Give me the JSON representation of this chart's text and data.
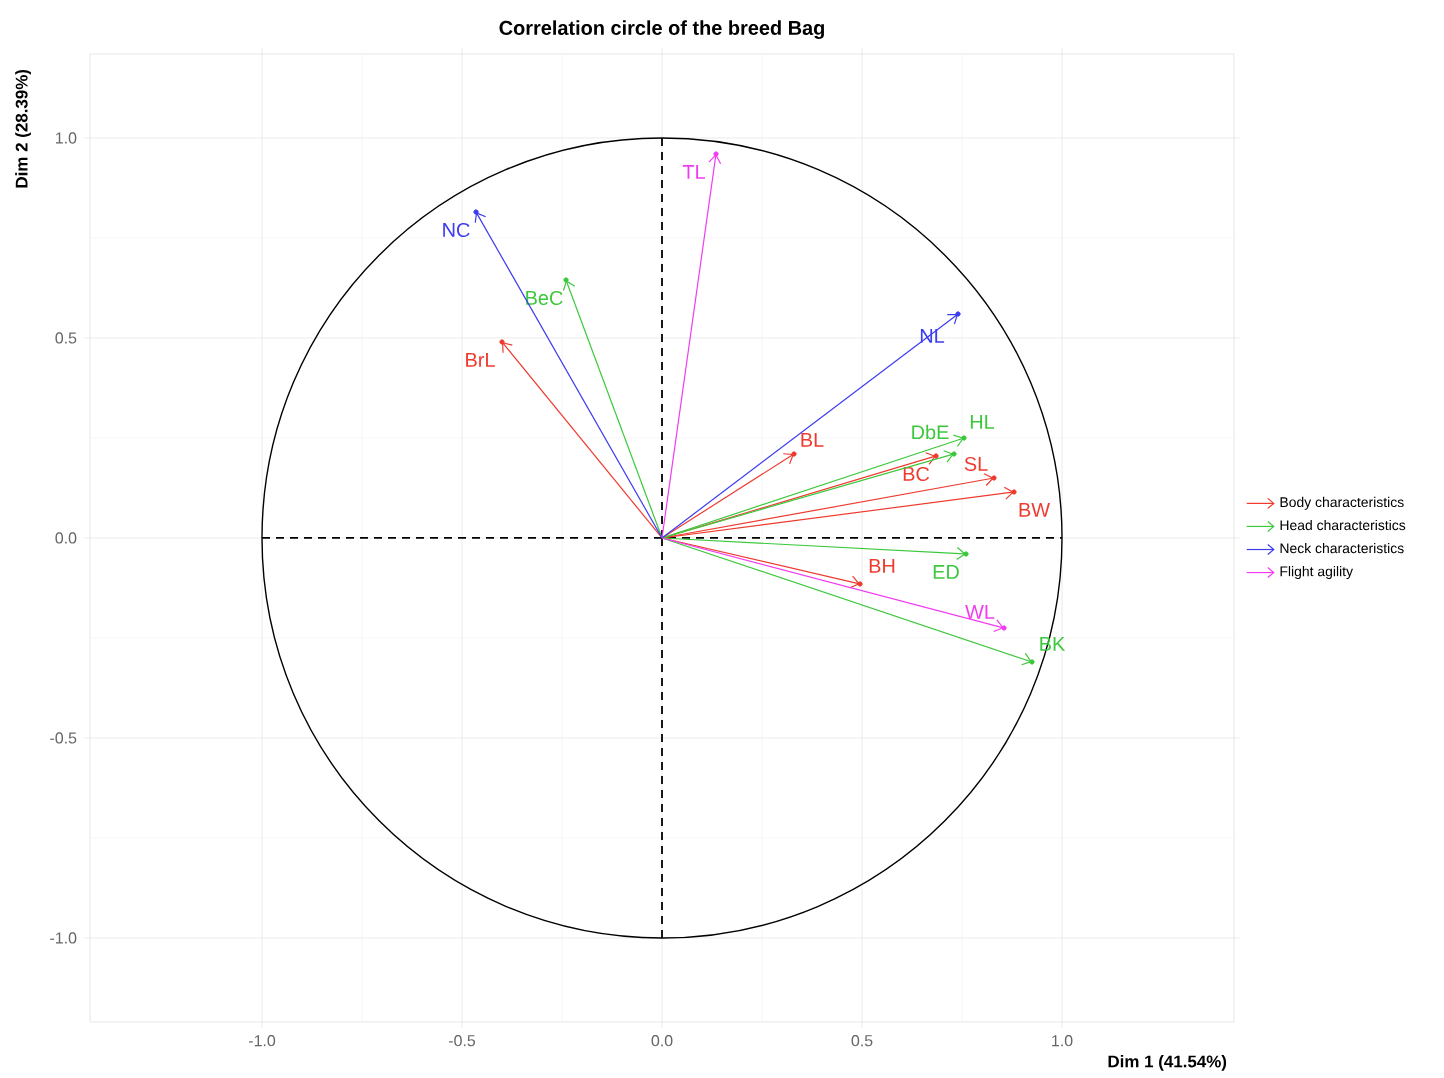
{
  "chart_data": {
    "type": "scatter",
    "title": "Correlation circle of the breed Bag",
    "xlabel": "Dim 1 (41.54%)",
    "ylabel": "Dim 2 (28.39%)",
    "xlim": [
      -1.43,
      1.43
    ],
    "ylim": [
      -1.21,
      1.21
    ],
    "xticks": [
      {
        "value": -1,
        "label": "-1.0"
      },
      {
        "value": -0.5,
        "label": "-0.5"
      },
      {
        "value": 0,
        "label": "0.0"
      },
      {
        "value": 0.5,
        "label": "0.5"
      },
      {
        "value": 1,
        "label": "1.0"
      }
    ],
    "yticks": [
      {
        "value": -1,
        "label": "-1.0"
      },
      {
        "value": -0.5,
        "label": "-0.5"
      },
      {
        "value": 0,
        "label": "0.0"
      },
      {
        "value": 0.5,
        "label": "0.5"
      },
      {
        "value": 1,
        "label": "1.0"
      }
    ],
    "grid": true,
    "legend": "right",
    "series": [
      {
        "name": "Body characteristics",
        "color": "#ee3b2f",
        "x": [
          -0.4,
          0.33,
          0.685,
          0.83,
          0.88,
          0.495
        ],
        "values": [
          0.49,
          0.21,
          0.205,
          0.15,
          0.115,
          -0.115
        ],
        "value_labels": [
          "BrL",
          "BL",
          "BC",
          "SL",
          "BW",
          "BH"
        ]
      },
      {
        "name": "Head characteristics",
        "color": "#3cc83c",
        "x": [
          -0.24,
          0.73,
          0.755,
          0.76,
          0.925
        ],
        "values": [
          0.645,
          0.21,
          0.25,
          -0.04,
          -0.31
        ],
        "value_labels": [
          "BeC",
          "DbE",
          "HL",
          "ED",
          "BK"
        ]
      },
      {
        "name": "Neck characteristics",
        "color": "#3b3bf0",
        "x": [
          -0.465,
          0.74
        ],
        "values": [
          0.815,
          0.56
        ],
        "value_labels": [
          "NC",
          "NL"
        ]
      },
      {
        "name": "Flight agility",
        "color": "#f03cf0",
        "x": [
          0.135,
          0.855
        ],
        "values": [
          0.96,
          -0.225
        ],
        "value_labels": [
          "TL",
          "WL"
        ]
      }
    ]
  }
}
